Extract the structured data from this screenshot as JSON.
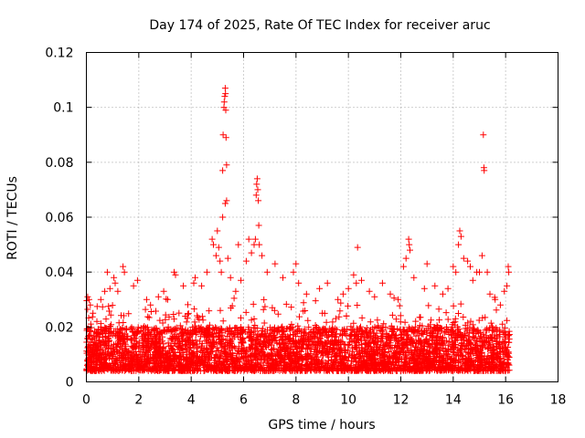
{
  "chart_data": {
    "type": "scatter",
    "title": "Day 174 of 2025, Rate Of TEC Index for receiver aruc",
    "xlabel": "GPS time / hours",
    "ylabel": "ROTI / TECUs",
    "xlim": [
      0,
      18
    ],
    "ylim": [
      0,
      0.12
    ],
    "xticks": [
      0,
      2,
      4,
      6,
      8,
      10,
      12,
      14,
      16,
      18
    ],
    "xtick_labels": [
      "0",
      "2",
      "4",
      "6",
      "8",
      "10",
      "12",
      "14",
      "16",
      "18"
    ],
    "yticks": [
      0,
      0.02,
      0.04,
      0.06,
      0.08,
      0.1,
      0.12
    ],
    "ytick_labels": [
      "0",
      "0.02",
      "0.04",
      "0.06",
      "0.08",
      "0.1",
      "0.12"
    ],
    "grid": true,
    "marker": "+",
    "color": "#ff0000",
    "series": [
      {
        "name": "ROTI",
        "points": [
          [
            0.05,
            0.031
          ],
          [
            0.1,
            0.03
          ],
          [
            0.15,
            0.028
          ],
          [
            0.25,
            0.025
          ],
          [
            0.4,
            0.022
          ],
          [
            0.55,
            0.03
          ],
          [
            0.7,
            0.033
          ],
          [
            0.8,
            0.04
          ],
          [
            0.9,
            0.034
          ],
          [
            1.05,
            0.038
          ],
          [
            1.1,
            0.036
          ],
          [
            1.2,
            0.033
          ],
          [
            1.4,
            0.042
          ],
          [
            1.45,
            0.04
          ],
          [
            1.8,
            0.035
          ],
          [
            1.95,
            0.037
          ],
          [
            2.3,
            0.03
          ],
          [
            2.45,
            0.028
          ],
          [
            2.75,
            0.031
          ],
          [
            2.95,
            0.033
          ],
          [
            3.1,
            0.03
          ],
          [
            3.35,
            0.04
          ],
          [
            3.4,
            0.039
          ],
          [
            3.7,
            0.035
          ],
          [
            4.1,
            0.036
          ],
          [
            4.15,
            0.038
          ],
          [
            4.4,
            0.035
          ],
          [
            4.6,
            0.04
          ],
          [
            4.8,
            0.052
          ],
          [
            4.85,
            0.05
          ],
          [
            4.95,
            0.046
          ],
          [
            5.0,
            0.055
          ],
          [
            5.05,
            0.049
          ],
          [
            5.1,
            0.044
          ],
          [
            5.15,
            0.04
          ],
          [
            5.2,
            0.077
          ],
          [
            5.22,
            0.09
          ],
          [
            5.25,
            0.1
          ],
          [
            5.26,
            0.102
          ],
          [
            5.28,
            0.104
          ],
          [
            5.3,
            0.107
          ],
          [
            5.31,
            0.105
          ],
          [
            5.32,
            0.099
          ],
          [
            5.33,
            0.089
          ],
          [
            5.35,
            0.079
          ],
          [
            5.3,
            0.065
          ],
          [
            5.35,
            0.066
          ],
          [
            5.2,
            0.06
          ],
          [
            5.4,
            0.045
          ],
          [
            5.5,
            0.038
          ],
          [
            5.7,
            0.033
          ],
          [
            5.8,
            0.05
          ],
          [
            5.9,
            0.037
          ],
          [
            6.1,
            0.044
          ],
          [
            6.2,
            0.052
          ],
          [
            6.3,
            0.047
          ],
          [
            6.4,
            0.05
          ],
          [
            6.45,
            0.052
          ],
          [
            6.48,
            0.068
          ],
          [
            6.5,
            0.072
          ],
          [
            6.52,
            0.074
          ],
          [
            6.54,
            0.07
          ],
          [
            6.56,
            0.066
          ],
          [
            6.58,
            0.057
          ],
          [
            6.6,
            0.05
          ],
          [
            6.7,
            0.046
          ],
          [
            6.9,
            0.04
          ],
          [
            7.2,
            0.043
          ],
          [
            7.5,
            0.038
          ],
          [
            7.9,
            0.04
          ],
          [
            8.0,
            0.043
          ],
          [
            8.1,
            0.036
          ],
          [
            8.4,
            0.032
          ],
          [
            8.9,
            0.034
          ],
          [
            9.2,
            0.036
          ],
          [
            9.6,
            0.03
          ],
          [
            9.8,
            0.032
          ],
          [
            10.0,
            0.034
          ],
          [
            10.2,
            0.039
          ],
          [
            10.3,
            0.036
          ],
          [
            10.35,
            0.049
          ],
          [
            10.5,
            0.037
          ],
          [
            10.8,
            0.033
          ],
          [
            11.0,
            0.031
          ],
          [
            11.3,
            0.036
          ],
          [
            11.6,
            0.032
          ],
          [
            11.9,
            0.03
          ],
          [
            12.1,
            0.042
          ],
          [
            12.2,
            0.045
          ],
          [
            12.3,
            0.052
          ],
          [
            12.32,
            0.05
          ],
          [
            12.35,
            0.048
          ],
          [
            12.5,
            0.038
          ],
          [
            12.9,
            0.034
          ],
          [
            13.0,
            0.043
          ],
          [
            13.3,
            0.035
          ],
          [
            13.6,
            0.032
          ],
          [
            13.8,
            0.034
          ],
          [
            14.0,
            0.042
          ],
          [
            14.1,
            0.04
          ],
          [
            14.2,
            0.05
          ],
          [
            14.25,
            0.055
          ],
          [
            14.3,
            0.053
          ],
          [
            14.4,
            0.045
          ],
          [
            14.55,
            0.044
          ],
          [
            14.65,
            0.042
          ],
          [
            14.75,
            0.037
          ],
          [
            14.9,
            0.04
          ],
          [
            15.0,
            0.04
          ],
          [
            15.1,
            0.046
          ],
          [
            15.15,
            0.09
          ],
          [
            15.17,
            0.078
          ],
          [
            15.18,
            0.077
          ],
          [
            15.3,
            0.04
          ],
          [
            15.4,
            0.032
          ],
          [
            15.6,
            0.03
          ],
          [
            15.8,
            0.028
          ],
          [
            15.95,
            0.033
          ],
          [
            16.05,
            0.035
          ],
          [
            16.1,
            0.042
          ],
          [
            16.12,
            0.04
          ]
        ],
        "band": {
          "x_range": [
            0.0,
            16.15
          ],
          "typical_low": 0.004,
          "typical_high": 0.02,
          "density": "dense"
        }
      }
    ]
  }
}
